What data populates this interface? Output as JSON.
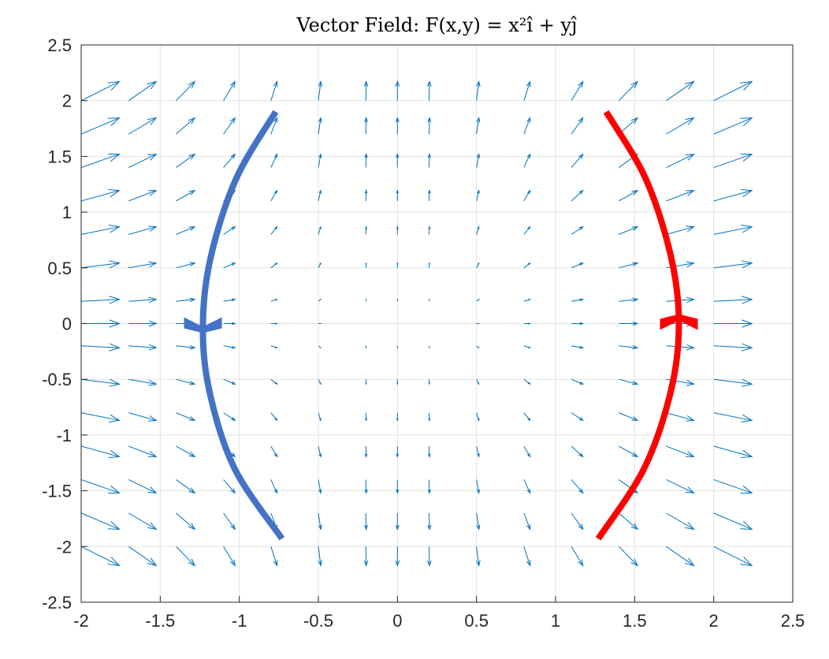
{
  "chart_data": {
    "type": "quiver",
    "title": "Vector Field: F(x,y) = x²î + yĵ",
    "xlabel": "",
    "ylabel": "",
    "xlim": [
      -2,
      2.5
    ],
    "ylim": [
      -2.5,
      2.5
    ],
    "grid": true,
    "x_ticks": [
      "-2",
      "-1.5",
      "-1",
      "-0.5",
      "0",
      "0.5",
      "1",
      "1.5",
      "2",
      "2.5"
    ],
    "y_ticks": [
      "2.5",
      "2",
      "1.5",
      "1",
      "0.5",
      "0",
      "-0.5",
      "-1",
      "-1.5",
      "-2",
      "-2.5"
    ],
    "field": {
      "expression": "F(x,y) = x^2 i + y j",
      "x_values": [
        -2.0,
        -1.7,
        -1.4,
        -1.1,
        -0.8,
        -0.5,
        -0.2,
        0.0,
        0.2,
        0.5,
        0.8,
        1.1,
        1.4,
        1.7,
        2.0
      ],
      "y_values": [
        -2.0,
        -1.7,
        -1.4,
        -1.1,
        -0.8,
        -0.5,
        -0.2,
        0.0,
        0.2,
        0.5,
        0.8,
        1.1,
        1.4,
        1.7,
        2.0
      ],
      "color": "#0072BD"
    },
    "curves": [
      {
        "color": "#4472C4",
        "points": [
          [
            -0.77,
            1.9
          ],
          [
            -1.02,
            1.3
          ],
          [
            -1.18,
            0.6
          ],
          [
            -1.23,
            0.0
          ],
          [
            -1.19,
            -0.6
          ],
          [
            -1.03,
            -1.3
          ],
          [
            -0.73,
            -1.93
          ]
        ],
        "arrow": {
          "x": -1.23,
          "y": 0.0,
          "direction": "down"
        }
      },
      {
        "color": "#FF0000",
        "points": [
          [
            1.32,
            1.9
          ],
          [
            1.57,
            1.3
          ],
          [
            1.73,
            0.6
          ],
          [
            1.78,
            0.0
          ],
          [
            1.73,
            -0.6
          ],
          [
            1.56,
            -1.3
          ],
          [
            1.27,
            -1.93
          ]
        ],
        "arrow": {
          "x": 1.78,
          "y": 0.0,
          "direction": "up"
        }
      }
    ]
  }
}
